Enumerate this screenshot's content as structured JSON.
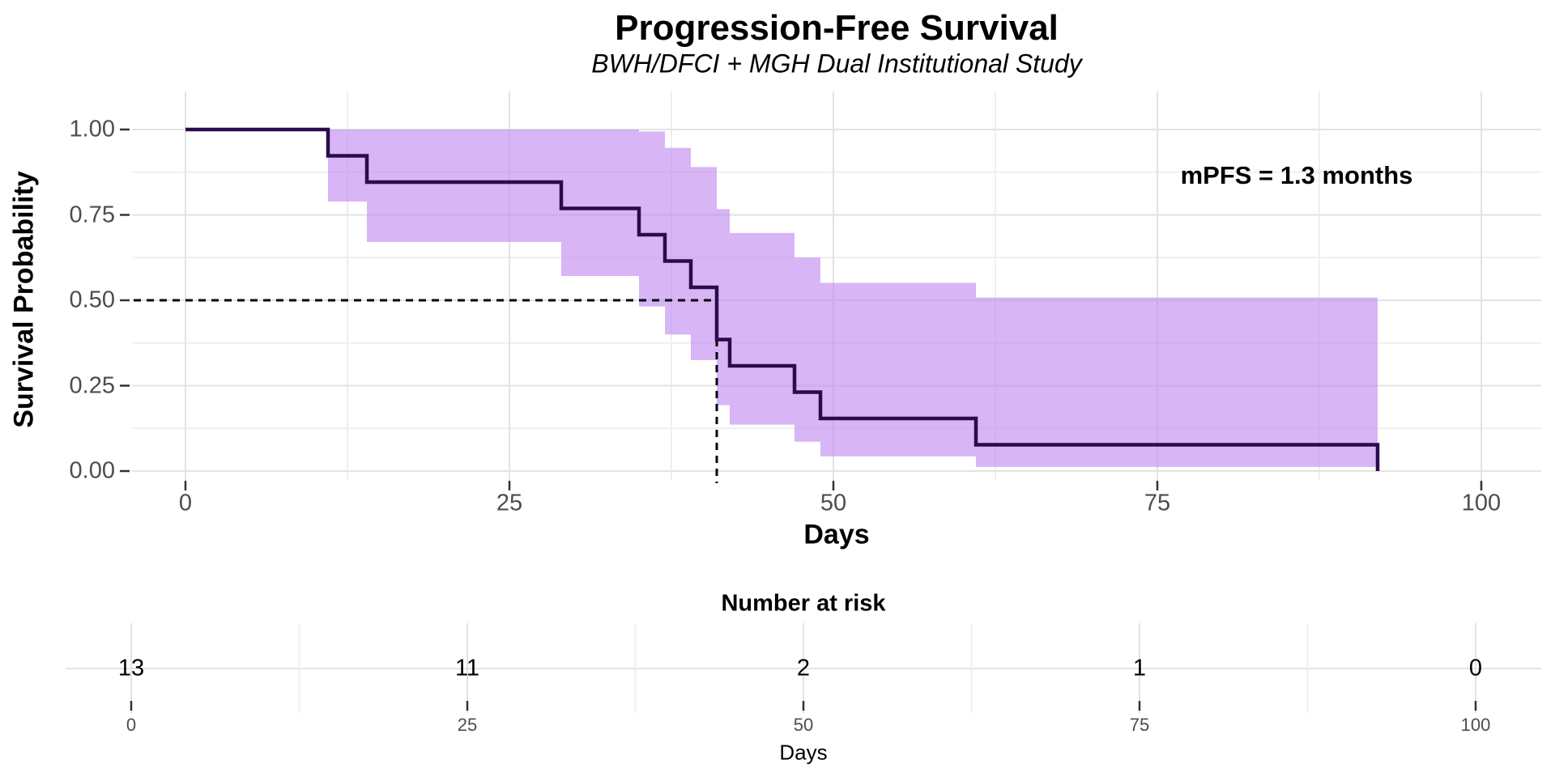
{
  "header": {
    "title": "Progression-Free Survival",
    "subtitle": "BWH/DFCI + MGH Dual Institutional Study"
  },
  "annotation": "mPFS = 1.3 months",
  "chart_data": {
    "type": "line",
    "subtype": "kaplan-meier-step",
    "title": "Progression-Free Survival",
    "subtitle": "BWH/DFCI + MGH Dual Institutional Study",
    "xlabel": "Days",
    "ylabel": "Survival Probability",
    "xlim": [
      0,
      100
    ],
    "ylim": [
      0,
      1
    ],
    "grid": "on",
    "x_ticks": [
      {
        "value": 0,
        "label": "0"
      },
      {
        "value": 25,
        "label": "25"
      },
      {
        "value": 50,
        "label": "50"
      },
      {
        "value": 75,
        "label": "75"
      },
      {
        "value": 100,
        "label": "100"
      }
    ],
    "y_ticks": [
      {
        "value": 0.0,
        "label": "0.00"
      },
      {
        "value": 0.25,
        "label": "0.25"
      },
      {
        "value": 0.5,
        "label": "0.50"
      },
      {
        "value": 0.75,
        "label": "0.75"
      },
      {
        "value": 1.0,
        "label": "1.00"
      }
    ],
    "km_steps": [
      {
        "t": 0,
        "s": 1.0,
        "lo": null,
        "up": null
      },
      {
        "t": 11,
        "s": 0.923,
        "lo": 0.789,
        "up": 1.0
      },
      {
        "t": 14,
        "s": 0.846,
        "lo": 0.671,
        "up": 1.0
      },
      {
        "t": 29,
        "s": 0.769,
        "lo": 0.571,
        "up": 1.0
      },
      {
        "t": 35,
        "s": 0.692,
        "lo": 0.482,
        "up": 0.994
      },
      {
        "t": 37,
        "s": 0.615,
        "lo": 0.4,
        "up": 0.946
      },
      {
        "t": 39,
        "s": 0.538,
        "lo": 0.325,
        "up": 0.89
      },
      {
        "t": 41,
        "s": 0.385,
        "lo": 0.193,
        "up": 0.767
      },
      {
        "t": 42,
        "s": 0.308,
        "lo": 0.136,
        "up": 0.697
      },
      {
        "t": 47,
        "s": 0.231,
        "lo": 0.086,
        "up": 0.625
      },
      {
        "t": 49,
        "s": 0.154,
        "lo": 0.043,
        "up": 0.551
      },
      {
        "t": 61,
        "s": 0.077,
        "lo": 0.012,
        "up": 0.508
      },
      {
        "t": 92,
        "s": 0.0,
        "lo": null,
        "up": null
      }
    ],
    "median": {
      "day": 41,
      "probability": 0.5,
      "label": "mPFS = 1.3 months"
    },
    "risk_table": {
      "title": "Number at risk",
      "times": [
        0,
        25,
        50,
        75,
        100
      ],
      "counts": [
        "13",
        "11",
        "2",
        "1",
        "0"
      ],
      "tick_labels": [
        "0",
        "25",
        "50",
        "75",
        "100"
      ],
      "xlabel": "Days"
    },
    "colors": {
      "curve": "#2b0b4e",
      "band": "#be84ee",
      "band_opacity": 0.6,
      "grid_major": "#e3e3e3",
      "grid_minor": "#efefef",
      "tick_mark": "#333333",
      "axis_text": "#4d4d4d",
      "median_dash": "#000000"
    }
  }
}
